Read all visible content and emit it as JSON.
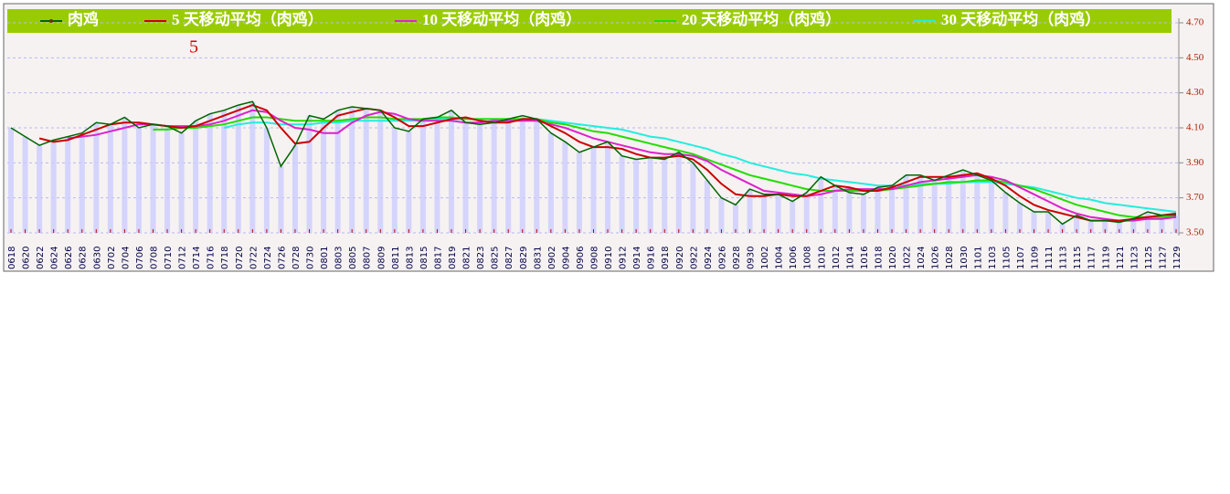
{
  "chart_data": {
    "type": "line",
    "annotation": "5",
    "categories": [
      "0618",
      "0620",
      "0622",
      "0624",
      "0626",
      "0628",
      "0630",
      "0702",
      "0704",
      "0706",
      "0708",
      "0710",
      "0712",
      "0714",
      "0716",
      "0718",
      "0720",
      "0722",
      "0724",
      "0726",
      "0728",
      "0730",
      "0801",
      "0803",
      "0805",
      "0807",
      "0809",
      "0811",
      "0813",
      "0815",
      "0817",
      "0819",
      "0821",
      "0823",
      "0825",
      "0827",
      "0829",
      "0831",
      "0902",
      "0904",
      "0906",
      "0908",
      "0910",
      "0912",
      "0914",
      "0916",
      "0918",
      "0920",
      "0922",
      "0924",
      "0926",
      "0928",
      "0930",
      "1002",
      "1004",
      "1006",
      "1008",
      "1010",
      "1012",
      "1014",
      "1016",
      "1018",
      "1020",
      "1022",
      "1024",
      "1026",
      "1028",
      "1030",
      "1101",
      "1103",
      "1105",
      "1107",
      "1109",
      "1111",
      "1113",
      "1115",
      "1117",
      "1119",
      "1121",
      "1123",
      "1125",
      "1127",
      "1129"
    ],
    "series": [
      {
        "name": "肉鸡",
        "color": "#006600",
        "values": [
          4.1,
          4.05,
          4.0,
          4.03,
          4.05,
          4.07,
          4.13,
          4.12,
          4.16,
          4.1,
          4.12,
          4.11,
          4.07,
          4.14,
          4.18,
          4.2,
          4.23,
          4.25,
          4.1,
          3.88,
          4.0,
          4.17,
          4.15,
          4.2,
          4.22,
          4.21,
          4.2,
          4.1,
          4.08,
          4.15,
          4.16,
          4.2,
          4.13,
          4.12,
          4.13,
          4.15,
          4.17,
          4.15,
          4.07,
          4.02,
          3.96,
          3.99,
          4.02,
          3.94,
          3.92,
          3.93,
          3.92,
          3.96,
          3.9,
          3.8,
          3.7,
          3.66,
          3.75,
          3.72,
          3.72,
          3.68,
          3.73,
          3.82,
          3.77,
          3.73,
          3.72,
          3.76,
          3.77,
          3.83,
          3.83,
          3.8,
          3.83,
          3.86,
          3.83,
          3.8,
          3.73,
          3.67,
          3.62,
          3.62,
          3.55,
          3.6,
          3.57,
          3.57,
          3.56,
          3.58,
          3.62,
          3.6,
          3.6
        ]
      },
      {
        "name": "5 天移动平均（肉鸡）",
        "color": "#cc0000",
        "values": [
          null,
          null,
          4.04,
          4.02,
          4.03,
          4.06,
          4.09,
          4.12,
          4.13,
          4.13,
          4.12,
          4.11,
          4.1,
          4.11,
          4.14,
          4.17,
          4.2,
          4.23,
          4.2,
          4.1,
          4.01,
          4.02,
          4.1,
          4.17,
          4.19,
          4.21,
          4.2,
          4.16,
          4.11,
          4.11,
          4.13,
          4.15,
          4.16,
          4.14,
          4.13,
          4.13,
          4.15,
          4.15,
          4.11,
          4.07,
          4.02,
          3.99,
          3.99,
          3.98,
          3.95,
          3.93,
          3.93,
          3.94,
          3.92,
          3.86,
          3.78,
          3.72,
          3.71,
          3.71,
          3.72,
          3.71,
          3.71,
          3.74,
          3.77,
          3.76,
          3.74,
          3.74,
          3.76,
          3.79,
          3.82,
          3.82,
          3.82,
          3.83,
          3.84,
          3.81,
          3.77,
          3.71,
          3.66,
          3.63,
          3.61,
          3.59,
          3.57,
          3.57,
          3.57,
          3.58,
          3.59,
          3.6,
          3.61
        ]
      },
      {
        "name": "10 天移动平均（肉鸡）",
        "color": "#dd22cc",
        "values": [
          null,
          null,
          null,
          null,
          4.04,
          4.05,
          4.06,
          4.08,
          4.1,
          4.12,
          4.12,
          4.11,
          4.11,
          4.11,
          4.12,
          4.14,
          4.17,
          4.2,
          4.19,
          4.14,
          4.1,
          4.09,
          4.07,
          4.07,
          4.13,
          4.17,
          4.19,
          4.18,
          4.15,
          4.14,
          4.14,
          4.14,
          4.13,
          4.13,
          4.14,
          4.14,
          4.14,
          4.14,
          4.12,
          4.1,
          4.07,
          4.04,
          4.02,
          4.0,
          3.98,
          3.96,
          3.95,
          3.95,
          3.94,
          3.91,
          3.86,
          3.82,
          3.78,
          3.74,
          3.73,
          3.72,
          3.71,
          3.72,
          3.74,
          3.75,
          3.75,
          3.75,
          3.75,
          3.77,
          3.79,
          3.8,
          3.81,
          3.82,
          3.83,
          3.82,
          3.8,
          3.76,
          3.72,
          3.68,
          3.64,
          3.61,
          3.59,
          3.58,
          3.57,
          3.57,
          3.58,
          3.58,
          3.59
        ]
      },
      {
        "name": "20 天移动平均（肉鸡）",
        "color": "#22dd00",
        "values": [
          null,
          null,
          null,
          null,
          null,
          null,
          null,
          null,
          null,
          null,
          4.09,
          4.09,
          4.1,
          4.1,
          4.11,
          4.12,
          4.14,
          4.16,
          4.16,
          4.15,
          4.14,
          4.14,
          4.14,
          4.14,
          4.15,
          4.16,
          4.16,
          4.15,
          4.15,
          4.15,
          4.16,
          4.16,
          4.15,
          4.15,
          4.15,
          4.15,
          4.15,
          4.15,
          4.13,
          4.12,
          4.1,
          4.08,
          4.07,
          4.05,
          4.03,
          4.01,
          3.99,
          3.97,
          3.95,
          3.92,
          3.89,
          3.86,
          3.83,
          3.81,
          3.79,
          3.77,
          3.75,
          3.74,
          3.74,
          3.74,
          3.74,
          3.74,
          3.75,
          3.76,
          3.77,
          3.78,
          3.79,
          3.79,
          3.8,
          3.8,
          3.79,
          3.77,
          3.75,
          3.72,
          3.69,
          3.66,
          3.64,
          3.62,
          3.6,
          3.59,
          3.59,
          3.59,
          3.59
        ]
      },
      {
        "name": "30 天移动平均（肉鸡）",
        "color": "#22eedd",
        "values": [
          null,
          null,
          null,
          null,
          null,
          null,
          null,
          null,
          null,
          null,
          null,
          null,
          null,
          null,
          null,
          4.1,
          4.12,
          4.13,
          4.13,
          4.12,
          4.12,
          4.12,
          4.13,
          4.13,
          4.14,
          4.14,
          4.14,
          4.14,
          4.14,
          4.14,
          4.15,
          4.15,
          4.15,
          4.15,
          4.15,
          4.15,
          4.15,
          4.15,
          4.14,
          4.13,
          4.12,
          4.11,
          4.1,
          4.09,
          4.07,
          4.05,
          4.04,
          4.02,
          4.0,
          3.98,
          3.95,
          3.93,
          3.9,
          3.88,
          3.86,
          3.84,
          3.83,
          3.81,
          3.8,
          3.79,
          3.78,
          3.77,
          3.77,
          3.77,
          3.78,
          3.78,
          3.78,
          3.79,
          3.79,
          3.79,
          3.78,
          3.77,
          3.76,
          3.74,
          3.72,
          3.7,
          3.69,
          3.67,
          3.66,
          3.65,
          3.64,
          3.63,
          3.62
        ]
      }
    ],
    "bar_color": "#ccccff",
    "ylim": [
      3.5,
      4.7
    ],
    "yticks": [
      {
        "value": 3.5,
        "label": "3.50"
      },
      {
        "value": 3.7,
        "label": "3.70"
      },
      {
        "value": 3.9,
        "label": "3.90"
      },
      {
        "value": 4.1,
        "label": "4.10"
      },
      {
        "value": 4.3,
        "label": "4.30"
      },
      {
        "value": 4.5,
        "label": "4.50"
      },
      {
        "value": 4.7,
        "label": "4.70"
      }
    ],
    "grid": true
  }
}
